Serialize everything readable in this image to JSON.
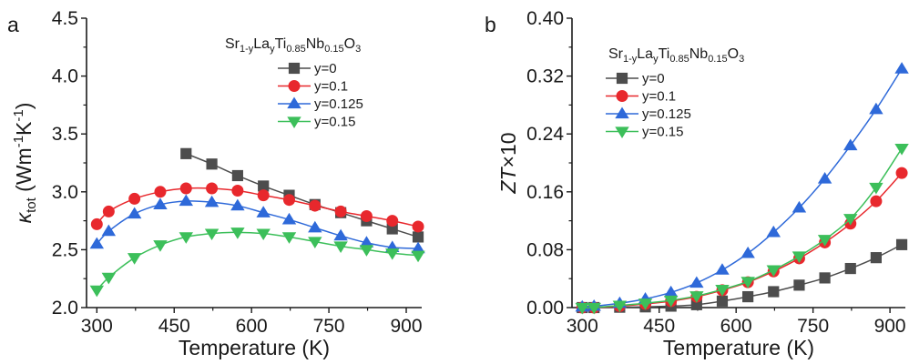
{
  "colors": {
    "y=0": "#4d4d4d",
    "y=0.1": "#e8282d",
    "y=0.125": "#2e69d9",
    "y=0.15": "#3cbf5a",
    "axis": "#1a1a1a"
  },
  "chart_data": [
    {
      "panel": "a",
      "type": "line",
      "xlabel": "Temperature (K)",
      "ylabel": "κtot (Wm-1K-1)",
      "ylabel_parts": {
        "kappa": "κ",
        "kappa_sub": "tot",
        "open": " (Wm",
        "sup1": "-1",
        "k": "K",
        "sup2": "-1",
        "close": ")"
      },
      "xlim": [
        280,
        930
      ],
      "ylim": [
        2.0,
        4.5
      ],
      "xticks": [
        300,
        450,
        600,
        750,
        900
      ],
      "yticks": [
        2.0,
        2.5,
        3.0,
        3.5,
        4.0,
        4.5
      ],
      "ytick_labels": [
        "2.0",
        "2.5",
        "3.0",
        "3.5",
        "4.0",
        "4.5"
      ],
      "grid": false,
      "legend_position": "top-right",
      "legend_title": {
        "parts": [
          "Sr",
          "1-y",
          "La",
          "y",
          "Ti",
          "0.85",
          "Nb",
          "0.15",
          "O",
          "3"
        ]
      },
      "series": [
        {
          "name": "y=0",
          "marker": "square",
          "x": [
            473,
            523,
            573,
            623,
            673,
            723,
            773,
            823,
            873,
            923
          ],
          "y": [
            3.33,
            3.24,
            3.14,
            3.05,
            2.97,
            2.89,
            2.82,
            2.75,
            2.68,
            2.61
          ]
        },
        {
          "name": "y=0.1",
          "marker": "circle",
          "x": [
            300,
            323,
            373,
            423,
            473,
            523,
            573,
            623,
            673,
            723,
            773,
            823,
            873,
            923
          ],
          "y": [
            2.72,
            2.83,
            2.94,
            3.0,
            3.03,
            3.03,
            3.01,
            2.97,
            2.93,
            2.88,
            2.83,
            2.79,
            2.75,
            2.7
          ]
        },
        {
          "name": "y=0.125",
          "marker": "triangle-up",
          "x": [
            300,
            323,
            373,
            423,
            473,
            523,
            573,
            623,
            673,
            723,
            773,
            823,
            873,
            923
          ],
          "y": [
            2.55,
            2.66,
            2.81,
            2.89,
            2.92,
            2.91,
            2.88,
            2.82,
            2.76,
            2.69,
            2.62,
            2.56,
            2.52,
            2.51
          ]
        },
        {
          "name": "y=0.15",
          "marker": "triangle-down",
          "x": [
            300,
            323,
            373,
            423,
            473,
            523,
            573,
            623,
            673,
            723,
            773,
            823,
            873,
            923
          ],
          "y": [
            2.15,
            2.26,
            2.43,
            2.54,
            2.61,
            2.64,
            2.65,
            2.64,
            2.61,
            2.57,
            2.53,
            2.5,
            2.47,
            2.45
          ]
        }
      ]
    },
    {
      "panel": "b",
      "type": "line",
      "xlabel": "Temperature (K)",
      "ylabel": "ZT×10",
      "ylabel_parts": {
        "italic": "ZT",
        "rest": "×10"
      },
      "xlim": [
        280,
        930
      ],
      "ylim": [
        0.0,
        0.4
      ],
      "xticks": [
        300,
        450,
        600,
        750,
        900
      ],
      "yticks": [
        0.0,
        0.08,
        0.16,
        0.24,
        0.32,
        0.4
      ],
      "ytick_labels": [
        "0.00",
        "0.08",
        "0.16",
        "0.24",
        "0.32",
        "0.40"
      ],
      "grid": false,
      "legend_position": "top-left",
      "legend_title": {
        "parts": [
          "Sr",
          "1-y",
          "La",
          "y",
          "Ti",
          "0.85",
          "Nb",
          "0.15",
          "O",
          "3"
        ]
      },
      "series": [
        {
          "name": "y=0",
          "marker": "square",
          "x": [
            300,
            323,
            373,
            423,
            473,
            523,
            573,
            623,
            673,
            723,
            773,
            823,
            873,
            923
          ],
          "y": [
            0.0,
            0.0,
            0.0005,
            0.001,
            0.002,
            0.004,
            0.009,
            0.015,
            0.022,
            0.031,
            0.041,
            0.054,
            0.069,
            0.087
          ]
        },
        {
          "name": "y=0.1",
          "marker": "circle",
          "x": [
            300,
            323,
            373,
            423,
            473,
            523,
            573,
            623,
            673,
            723,
            773,
            823,
            873,
            923
          ],
          "y": [
            0.0,
            0.0,
            0.002,
            0.005,
            0.009,
            0.015,
            0.024,
            0.035,
            0.05,
            0.068,
            0.09,
            0.116,
            0.147,
            0.186
          ]
        },
        {
          "name": "y=0.125",
          "marker": "triangle-up",
          "x": [
            300,
            323,
            373,
            423,
            473,
            523,
            573,
            623,
            673,
            723,
            773,
            823,
            873,
            923
          ],
          "y": [
            0.001,
            0.002,
            0.006,
            0.012,
            0.021,
            0.034,
            0.052,
            0.075,
            0.104,
            0.138,
            0.178,
            0.224,
            0.274,
            0.33
          ]
        },
        {
          "name": "y=0.15",
          "marker": "triangle-down",
          "x": [
            300,
            323,
            373,
            423,
            473,
            523,
            573,
            623,
            673,
            723,
            773,
            823,
            873,
            923
          ],
          "y": [
            0.0,
            0.0,
            0.003,
            0.006,
            0.01,
            0.016,
            0.025,
            0.036,
            0.052,
            0.071,
            0.094,
            0.123,
            0.166,
            0.22
          ]
        }
      ]
    }
  ]
}
